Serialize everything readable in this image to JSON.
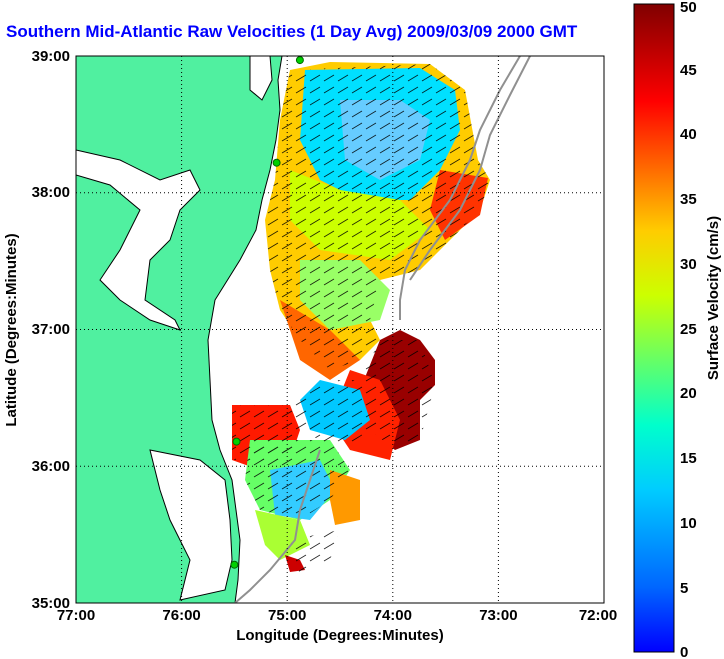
{
  "title": "Southern Mid-Atlantic Raw Velocities (1 Day Avg) 2009/03/09 2000 GMT",
  "xlabel": "Longitude (Degrees:Minutes)",
  "ylabel": "Latitude (Degrees:Minutes)",
  "colorbar_label": "Surface Velocity (cm/s)",
  "colors": {
    "title": "#0000ff",
    "land": "#50f0a0",
    "water": "#ffffff",
    "coastline": "#000000",
    "bathymetry": "#909090",
    "station": "#00d000",
    "vector": "#000000"
  },
  "chart_data": {
    "type": "heatmap",
    "xlabel": "Longitude (Degrees:Minutes)",
    "ylabel": "Latitude (Degrees:Minutes)",
    "xlim": [
      -77,
      -72
    ],
    "ylim": [
      35,
      39
    ],
    "grid": true,
    "x_ticks": [
      "77:00",
      "76:00",
      "75:00",
      "74:00",
      "73:00",
      "72:00"
    ],
    "y_ticks": [
      "35:00",
      "36:00",
      "37:00",
      "38:00",
      "39:00"
    ],
    "colorbar": {
      "label": "Surface Velocity (cm/s)",
      "range": [
        0,
        50
      ],
      "ticks": [
        "0",
        "5",
        "10",
        "15",
        "20",
        "25",
        "30",
        "35",
        "40",
        "45",
        "50"
      ],
      "colormap": "jet"
    },
    "stations": [
      {
        "lon": -74.88,
        "lat": 38.97
      },
      {
        "lon": -75.1,
        "lat": 38.22
      },
      {
        "lon": -75.48,
        "lat": 36.18
      },
      {
        "lon": -75.5,
        "lat": 35.28
      }
    ]
  }
}
